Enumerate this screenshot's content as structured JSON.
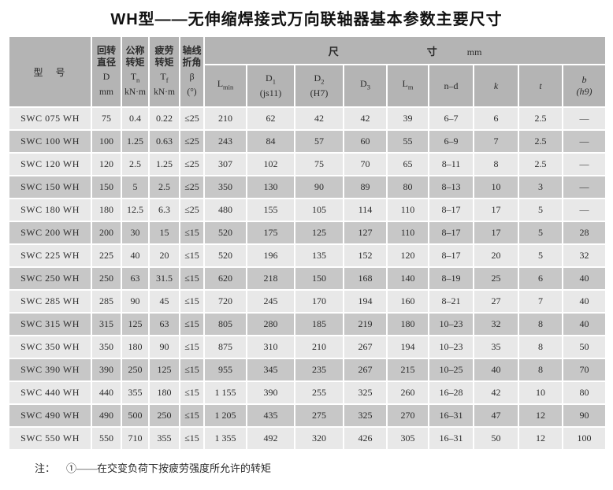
{
  "title": "WH型——无伸缩焊接式万向联轴器基本参数主要尺寸",
  "table": {
    "model_header": "型　号",
    "param_columns": [
      {
        "line1": "回转",
        "line2": "直径",
        "symbol": "D",
        "subscript": "",
        "unit": "mm"
      },
      {
        "line1": "公称",
        "line2": "转矩",
        "symbol": "T",
        "subscript": "n",
        "unit": "kN·m"
      },
      {
        "line1": "疲劳",
        "line2": "转矩",
        "symbol": "T",
        "subscript": "f",
        "unit": "kN·m"
      },
      {
        "line1": "轴线",
        "line2": "折角",
        "symbol": "β",
        "subscript": "",
        "unit": "(°)"
      }
    ],
    "size_group": {
      "char1": "尺",
      "char2": "寸",
      "unit": "mm"
    },
    "size_columns": [
      {
        "base": "L",
        "sub": "min",
        "paren": "",
        "italic": false
      },
      {
        "base": "D",
        "sub": "1",
        "paren": "(js11)",
        "italic": false
      },
      {
        "base": "D",
        "sub": "2",
        "paren": "(H7)",
        "italic": false
      },
      {
        "base": "D",
        "sub": "3",
        "paren": "",
        "italic": false
      },
      {
        "base": "L",
        "sub": "m",
        "paren": "",
        "italic": false
      },
      {
        "base": "n–d",
        "sub": "",
        "paren": "",
        "italic": false
      },
      {
        "base": "k",
        "sub": "",
        "paren": "",
        "italic": true
      },
      {
        "base": "t",
        "sub": "",
        "paren": "",
        "italic": true
      },
      {
        "base": "b",
        "sub": "",
        "paren": "(h9)",
        "italic": true
      }
    ],
    "rows": [
      [
        "SWC 075 WH",
        "75",
        "0.4",
        "0.22",
        "≤25",
        "210",
        "62",
        "42",
        "42",
        "39",
        "6–7",
        "6",
        "2.5",
        "—"
      ],
      [
        "SWC 100 WH",
        "100",
        "1.25",
        "0.63",
        "≤25",
        "243",
        "84",
        "57",
        "60",
        "55",
        "6–9",
        "7",
        "2.5",
        "—"
      ],
      [
        "SWC 120 WH",
        "120",
        "2.5",
        "1.25",
        "≤25",
        "307",
        "102",
        "75",
        "70",
        "65",
        "8–11",
        "8",
        "2.5",
        "—"
      ],
      [
        "SWC 150 WH",
        "150",
        "5",
        "2.5",
        "≤25",
        "350",
        "130",
        "90",
        "89",
        "80",
        "8–13",
        "10",
        "3",
        "—"
      ],
      [
        "SWC 180 WH",
        "180",
        "12.5",
        "6.3",
        "≤25",
        "480",
        "155",
        "105",
        "114",
        "110",
        "8–17",
        "17",
        "5",
        "—"
      ],
      [
        "SWC 200 WH",
        "200",
        "30",
        "15",
        "≤15",
        "520",
        "175",
        "125",
        "127",
        "110",
        "8–17",
        "17",
        "5",
        "28"
      ],
      [
        "SWC 225 WH",
        "225",
        "40",
        "20",
        "≤15",
        "520",
        "196",
        "135",
        "152",
        "120",
        "8–17",
        "20",
        "5",
        "32"
      ],
      [
        "SWC 250 WH",
        "250",
        "63",
        "31.5",
        "≤15",
        "620",
        "218",
        "150",
        "168",
        "140",
        "8–19",
        "25",
        "6",
        "40"
      ],
      [
        "SWC 285 WH",
        "285",
        "90",
        "45",
        "≤15",
        "720",
        "245",
        "170",
        "194",
        "160",
        "8–21",
        "27",
        "7",
        "40"
      ],
      [
        "SWC 315 WH",
        "315",
        "125",
        "63",
        "≤15",
        "805",
        "280",
        "185",
        "219",
        "180",
        "10–23",
        "32",
        "8",
        "40"
      ],
      [
        "SWC 350 WH",
        "350",
        "180",
        "90",
        "≤15",
        "875",
        "310",
        "210",
        "267",
        "194",
        "10–23",
        "35",
        "8",
        "50"
      ],
      [
        "SWC 390 WH",
        "390",
        "250",
        "125",
        "≤15",
        "955",
        "345",
        "235",
        "267",
        "215",
        "10–25",
        "40",
        "8",
        "70"
      ],
      [
        "SWC 440 WH",
        "440",
        "355",
        "180",
        "≤15",
        "1 155",
        "390",
        "255",
        "325",
        "260",
        "16–28",
        "42",
        "10",
        "80"
      ],
      [
        "SWC 490 WH",
        "490",
        "500",
        "250",
        "≤15",
        "1 205",
        "435",
        "275",
        "325",
        "270",
        "16–31",
        "47",
        "12",
        "90"
      ],
      [
        "SWC 550 WH",
        "550",
        "710",
        "355",
        "≤15",
        "1 355",
        "492",
        "320",
        "426",
        "305",
        "16–31",
        "50",
        "12",
        "100"
      ]
    ]
  },
  "footnote": {
    "prefix": "注：",
    "marker": "①",
    "dash": "——",
    "text": "在交变负荷下按疲劳强度所允许的转矩"
  }
}
